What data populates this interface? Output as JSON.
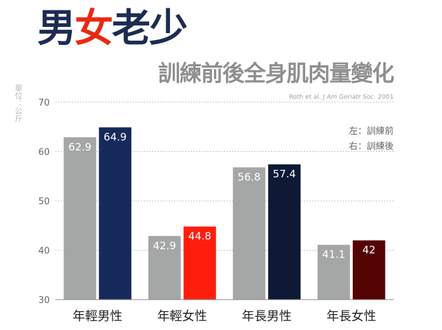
{
  "title": {
    "parts": [
      {
        "text": "男",
        "color": "#1c2c52"
      },
      {
        "text": "女",
        "color": "#e82a13"
      },
      {
        "text": "老少",
        "color": "#1c2c52"
      }
    ]
  },
  "subtitle": "訓練前後全身肌肉量變化",
  "citation_plain": "Roth et al. ",
  "citation_italic": "J Am Geriatr Soc.",
  "citation_year": " 2001",
  "unit_label": "單位：公斤",
  "legend": {
    "left": "左：訓練前",
    "right": "右：訓練後"
  },
  "colors": {
    "before": "#a5a6a6",
    "grid": "#c4c4c4",
    "axis": "#888888",
    "label_light": "#ffffff"
  },
  "chart_data": {
    "type": "bar",
    "categories": [
      "年輕男性",
      "年輕女性",
      "年長男性",
      "年長女性"
    ],
    "series": [
      {
        "values": [
          62.9,
          42.9,
          56.8,
          41.1
        ],
        "colors": [
          "#a5a6a6",
          "#a5a6a6",
          "#a5a6a6",
          "#a5a6a6"
        ]
      },
      {
        "values": [
          64.9,
          44.8,
          57.4,
          42
        ],
        "colors": [
          "#15295a",
          "#ff1e0e",
          "#0e1a35",
          "#550404"
        ]
      }
    ],
    "value_labels": [
      [
        "62.9",
        "42.9",
        "56.8",
        "41.1"
      ],
      [
        "64.9",
        "44.8",
        "57.4",
        "42"
      ]
    ],
    "ylim": [
      30,
      70
    ],
    "yticks": [
      30,
      40,
      50,
      60,
      70
    ],
    "grid": true
  }
}
